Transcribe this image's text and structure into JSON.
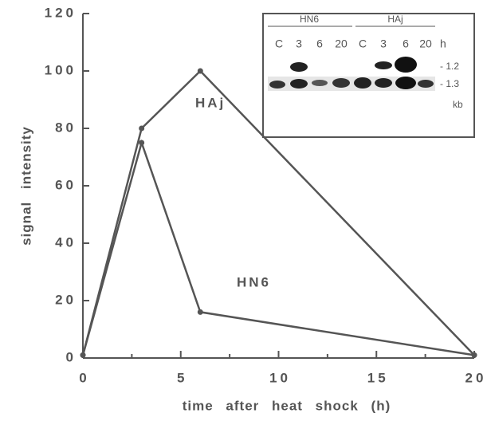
{
  "chart_data": {
    "type": "line",
    "xlabel": "time after heat shock (h)",
    "ylabel": "signal intensity",
    "x": [
      0,
      3,
      6,
      20
    ],
    "series": [
      {
        "name": "HAj",
        "color": "#555555",
        "values": [
          1,
          80,
          100,
          1
        ]
      },
      {
        "name": "HN6",
        "color": "#555555",
        "values": [
          1,
          75,
          16,
          1
        ]
      }
    ],
    "xlim": [
      0,
      20
    ],
    "xticks": [
      0,
      5,
      10,
      15,
      20
    ],
    "xminorticks": [
      2.5,
      7.5,
      12.5,
      17.5
    ],
    "ylim": [
      0,
      120
    ],
    "yticks": [
      0,
      20,
      40,
      60,
      80,
      100,
      120
    ],
    "inset": {
      "groups": [
        "HN6",
        "HAj"
      ],
      "lanes": [
        "C",
        "3",
        "6",
        "20",
        "C",
        "3",
        "6",
        "20"
      ],
      "lane_unit": "h",
      "sizes": [
        "- 1.2",
        "- 1.3"
      ],
      "size_unit": "kb"
    }
  }
}
